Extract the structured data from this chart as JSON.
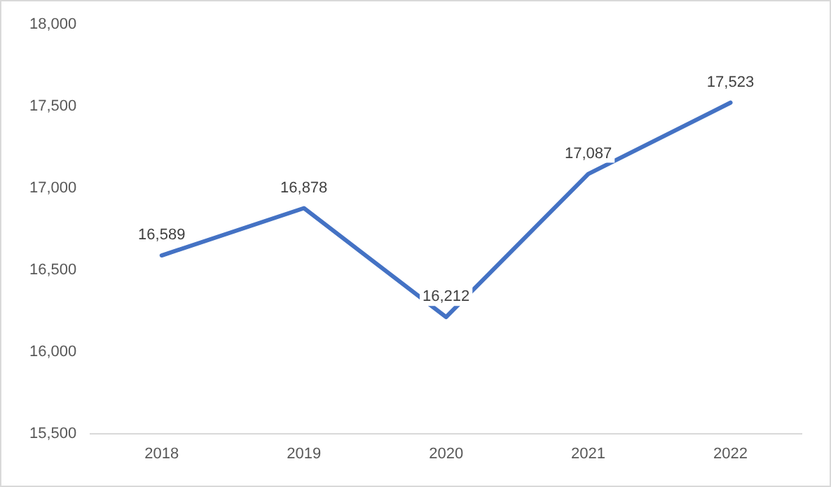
{
  "chart_data": {
    "type": "line",
    "categories": [
      "2018",
      "2019",
      "2020",
      "2021",
      "2022"
    ],
    "series": [
      {
        "color": "#4472c4",
        "values": [
          16589,
          16878,
          16212,
          17087,
          17523
        ],
        "value_labels": [
          "16,589",
          "16,878",
          "16,212",
          "17,087",
          "17,523"
        ]
      }
    ],
    "ylim": [
      15500,
      18000
    ],
    "yticks": [
      {
        "value": 15500,
        "label": "15,500"
      },
      {
        "value": 16000,
        "label": "16,000"
      },
      {
        "value": 16500,
        "label": "16,500"
      },
      {
        "value": 17000,
        "label": "17,000"
      },
      {
        "value": 17500,
        "label": "17,500"
      },
      {
        "value": 18000,
        "label": "18,000"
      }
    ],
    "grid": false,
    "legend": false,
    "marker": "none",
    "line_style": "solid"
  }
}
